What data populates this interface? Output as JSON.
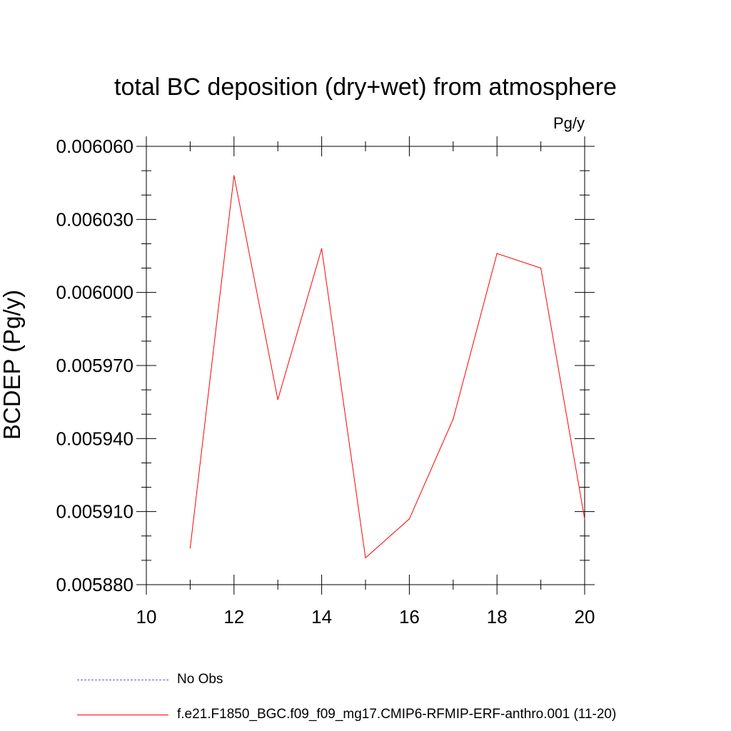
{
  "chart_data": {
    "type": "line",
    "title": "total BC deposition (dry+wet) from atmosphere",
    "units_label": "Pg/y",
    "ylabel": "BCDEP  (Pg/y)",
    "xlabel": "",
    "xlim": [
      10,
      20
    ],
    "ylim": [
      0.00588,
      0.00606
    ],
    "x_ticks": [
      "10",
      "12",
      "14",
      "16",
      "18",
      "20"
    ],
    "y_ticks": [
      "0.005880",
      "0.005910",
      "0.005940",
      "0.005970",
      "0.006000",
      "0.006030",
      "0.006060"
    ],
    "grid": false,
    "series": [
      {
        "name": "f.e21.F1850_BGC.f09_f09_mg17.CMIP6-RFMIP-ERF-anthro.001 (11-20)",
        "color": "#ff0000",
        "x": [
          11,
          12,
          13,
          14,
          15,
          16,
          17,
          18,
          19,
          20
        ],
        "y": [
          0.005895,
          0.006048,
          0.005956,
          0.006018,
          0.005891,
          0.005907,
          0.005948,
          0.006016,
          0.00601,
          0.005907
        ]
      }
    ],
    "legend": [
      {
        "label": "No Obs",
        "color": "#6a5acd",
        "style": "dashed"
      },
      {
        "label": "f.e21.F1850_BGC.f09_f09_mg17.CMIP6-RFMIP-ERF-anthro.001 (11-20)",
        "color": "#ff0000",
        "style": "solid"
      }
    ],
    "legend_placement": "bottom"
  }
}
